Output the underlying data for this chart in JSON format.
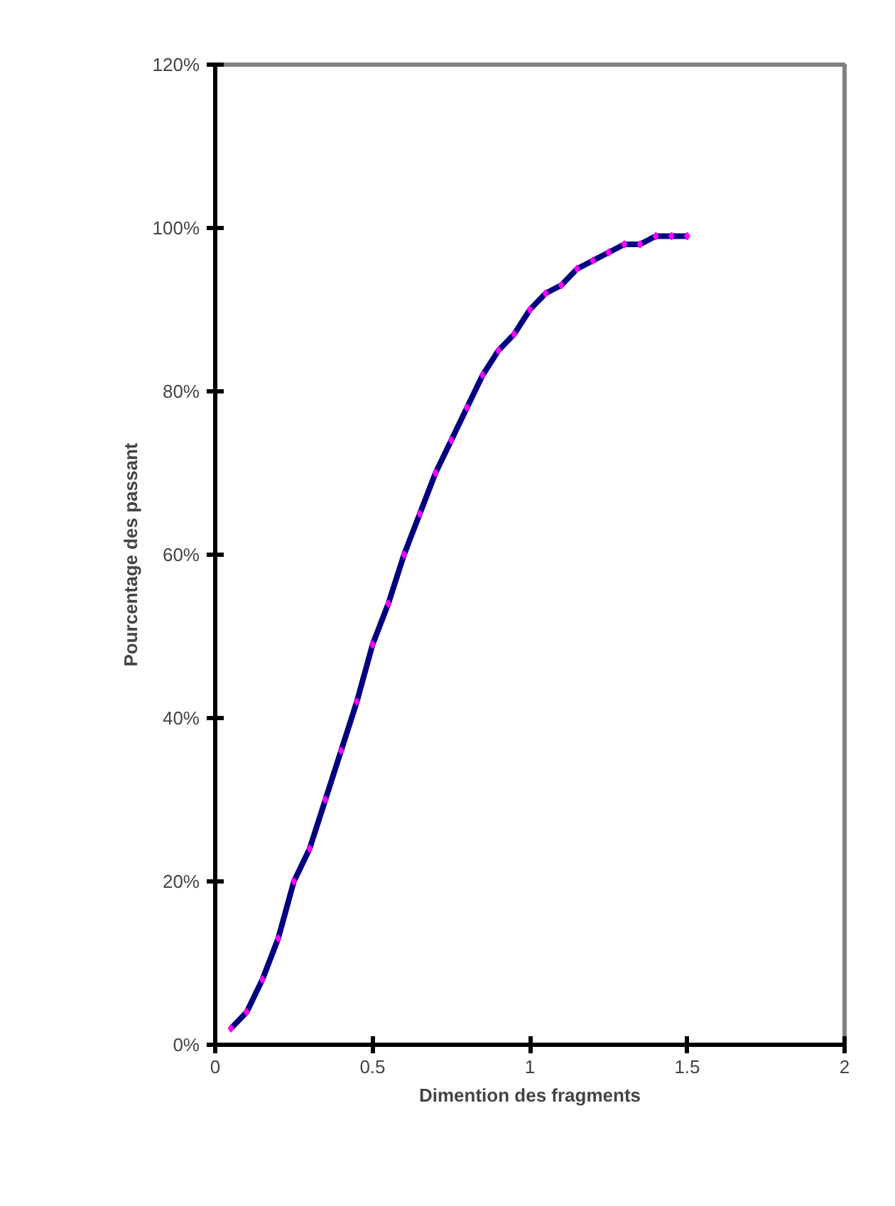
{
  "chart_data": {
    "type": "line",
    "xlabel": "Dimention des fragments",
    "ylabel": "Pourcentage des passant",
    "x": [
      0.05,
      0.1,
      0.15,
      0.2,
      0.25,
      0.3,
      0.35,
      0.4,
      0.45,
      0.5,
      0.55,
      0.6,
      0.65,
      0.7,
      0.75,
      0.8,
      0.85,
      0.9,
      0.95,
      1.0,
      1.05,
      1.1,
      1.15,
      1.2,
      1.25,
      1.3,
      1.35,
      1.4,
      1.45,
      1.5
    ],
    "series": [
      {
        "color": "#000080",
        "marker": "none",
        "values": [
          2,
          4,
          8,
          13,
          20,
          24,
          30,
          36,
          42,
          49,
          54,
          60,
          65,
          70,
          74,
          78,
          82,
          85,
          87,
          90,
          92,
          93,
          95,
          96,
          97,
          98,
          98,
          99,
          99,
          99
        ]
      },
      {
        "type": "scatter",
        "color": "#ff00ff",
        "marker": "diamond",
        "values": [
          2,
          4,
          8,
          13,
          20,
          24,
          30,
          36,
          42,
          49,
          54,
          60,
          65,
          70,
          74,
          78,
          82,
          85,
          87,
          90,
          92,
          93,
          95,
          96,
          97,
          98,
          98,
          99,
          99,
          99
        ]
      }
    ],
    "xlim": [
      0,
      2
    ],
    "xticks": [
      0,
      0.5,
      1,
      1.5,
      2
    ],
    "ylim": [
      0,
      120
    ],
    "yticks": [
      {
        "value": 0,
        "label": "0%"
      },
      {
        "value": 20,
        "label": "20%"
      },
      {
        "value": 40,
        "label": "40%"
      },
      {
        "value": 60,
        "label": "60%"
      },
      {
        "value": 80,
        "label": "80%"
      },
      {
        "value": 100,
        "label": "100%"
      },
      {
        "value": 120,
        "label": "120%"
      }
    ],
    "grid": false
  }
}
